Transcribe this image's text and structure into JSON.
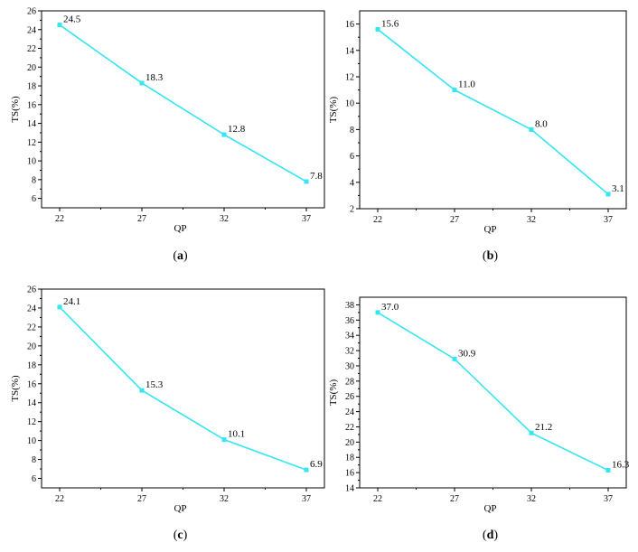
{
  "colors": {
    "series": "#33e6f2",
    "axis": "#000000"
  },
  "chart_data": [
    {
      "type": "line",
      "panel": "a",
      "caption": {
        "open": "(",
        "letter": "a",
        "close": ")"
      },
      "xlabel": "QP",
      "ylabel": "TS(%)",
      "categories": [
        "22",
        "27",
        "32",
        "37"
      ],
      "ylim": [
        5,
        26
      ],
      "yticks": [
        6,
        8,
        10,
        12,
        14,
        16,
        18,
        20,
        22,
        24,
        26
      ],
      "series": [
        {
          "values": [
            24.5,
            18.3,
            12.8,
            7.8
          ],
          "labels": [
            "24.5",
            "18.3",
            "12.8",
            "7.8"
          ]
        }
      ],
      "grid": false
    },
    {
      "type": "line",
      "panel": "b",
      "caption": {
        "open": "(",
        "letter": "b",
        "close": ")"
      },
      "xlabel": "QP",
      "ylabel": "TS(%)",
      "categories": [
        "22",
        "27",
        "32",
        "37"
      ],
      "ylim": [
        2,
        17
      ],
      "yticks": [
        2,
        4,
        6,
        8,
        10,
        12,
        14,
        16
      ],
      "series": [
        {
          "values": [
            15.6,
            11.0,
            8.0,
            3.1
          ],
          "labels": [
            "15.6",
            "11.0",
            "8.0",
            "3.1"
          ]
        }
      ],
      "grid": false
    },
    {
      "type": "line",
      "panel": "c",
      "caption": {
        "open": "(",
        "letter": "c",
        "close": ")"
      },
      "xlabel": "QP",
      "ylabel": "TS(%)",
      "categories": [
        "22",
        "27",
        "32",
        "37"
      ],
      "ylim": [
        5,
        26
      ],
      "yticks": [
        6,
        8,
        10,
        12,
        14,
        16,
        18,
        20,
        22,
        24,
        26
      ],
      "series": [
        {
          "values": [
            24.1,
            15.3,
            10.1,
            6.9
          ],
          "labels": [
            "24.1",
            "15.3",
            "10.1",
            "6.9"
          ]
        }
      ],
      "grid": false
    },
    {
      "type": "line",
      "panel": "d",
      "caption": {
        "open": "(",
        "letter": "d",
        "close": ")"
      },
      "xlabel": "QP",
      "ylabel": "TS(%)",
      "categories": [
        "22",
        "27",
        "32",
        "37"
      ],
      "ylim": [
        14,
        39
      ],
      "yticks": [
        14,
        16,
        18,
        20,
        22,
        24,
        26,
        28,
        30,
        32,
        34,
        36,
        38
      ],
      "series": [
        {
          "values": [
            37.0,
            30.9,
            21.2,
            16.3
          ],
          "labels": [
            "37.0",
            "30.9",
            "21.2",
            "16.3"
          ]
        }
      ],
      "grid": false
    }
  ]
}
